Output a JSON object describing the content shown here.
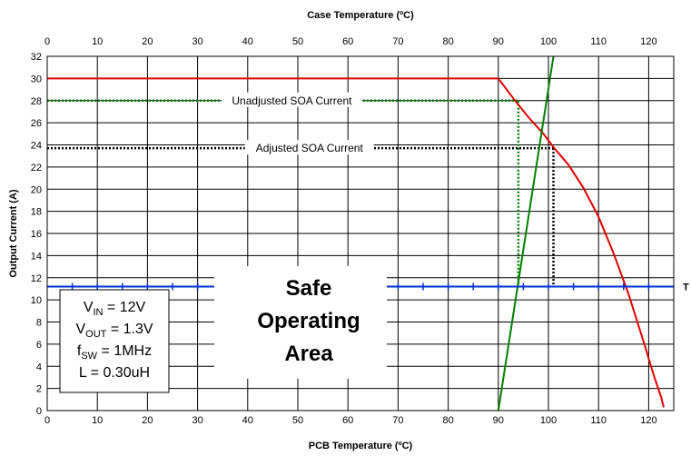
{
  "chart_data": {
    "type": "line",
    "title": "Case Temperature (ºC)",
    "xlabel": "PCB Temperature (ºC)",
    "ylabel": "Output Current (A)",
    "xlim": [
      0,
      125
    ],
    "ylim": [
      0,
      32
    ],
    "x_ticks": [
      0,
      10,
      20,
      30,
      40,
      50,
      60,
      70,
      80,
      90,
      100,
      110,
      120
    ],
    "y_ticks": [
      0,
      2,
      4,
      6,
      8,
      10,
      12,
      14,
      16,
      18,
      20,
      22,
      24,
      26,
      28,
      30,
      32
    ],
    "top_ticks": [
      0,
      10,
      20,
      30,
      40,
      50,
      60,
      70,
      80,
      90,
      100,
      110,
      120
    ],
    "grid": true,
    "series": [
      {
        "color": "#e00000",
        "x": [
          0,
          90,
          93,
          96,
          99,
          101,
          104,
          107,
          110,
          113,
          116,
          119,
          121,
          122.5,
          123
        ],
        "y": [
          30,
          30,
          28.2,
          26.5,
          25,
          23.8,
          22.2,
          20.1,
          17.5,
          14.2,
          10.5,
          6.2,
          3.2,
          1.2,
          0.3
        ]
      },
      {
        "color": "#008000",
        "x": [
          90,
          101
        ],
        "y": [
          0,
          32
        ]
      },
      {
        "color": "#0030d0",
        "marker": "+",
        "x": [
          0,
          5,
          10,
          15,
          20,
          25,
          30,
          35,
          40,
          45,
          50,
          55,
          60,
          65,
          70,
          75,
          80,
          85,
          90,
          95,
          100,
          105,
          110,
          115,
          120,
          125
        ],
        "y": [
          11.2,
          11.2,
          11.2,
          11.2,
          11.2,
          11.2,
          11.2,
          11.2,
          11.2,
          11.2,
          11.2,
          11.2,
          11.2,
          11.2,
          11.2,
          11.2,
          11.2,
          11.2,
          11.2,
          11.2,
          11.2,
          11.2,
          11.2,
          11.2,
          11.2,
          11.2
        ]
      }
    ],
    "annotations": {
      "unadjusted": {
        "label": "Unadjusted SOA Current",
        "current": 28,
        "temperature": 94,
        "color": "#008000"
      },
      "adjusted": {
        "label": "Adjusted SOA Current",
        "current": 23.7,
        "temperature": 101,
        "color": "#000000"
      },
      "region_label": [
        "Safe",
        "Operating",
        "Area"
      ],
      "t_marker": "T",
      "conditions": [
        {
          "main": "V",
          "sub": "IN",
          "rest": " = 12V"
        },
        {
          "main": "V",
          "sub": "OUT",
          "rest": " = 1.3V"
        },
        {
          "main": "f",
          "sub": "SW",
          "rest": " = 1MHz"
        },
        {
          "main": "L = 0.30uH",
          "sub": "",
          "rest": ""
        }
      ]
    }
  }
}
